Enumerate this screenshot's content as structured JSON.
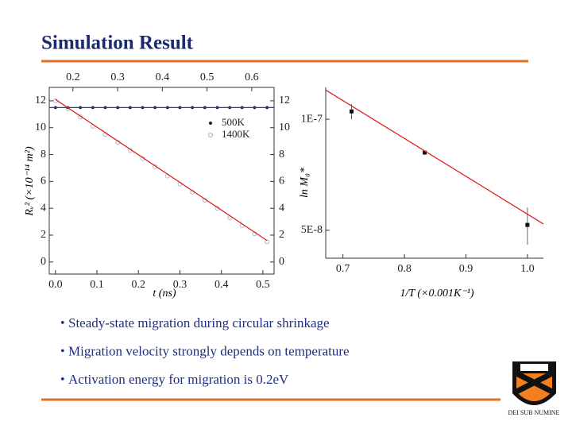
{
  "title": "Simulation Result",
  "bullets": [
    "Steady-state migration during circular shrinkage",
    "Migration velocity strongly depends on temperature",
    "Activation energy for migration is 0.2eV"
  ],
  "chart_data": [
    {
      "type": "line",
      "xlabel": "t (ns)",
      "ylabel": "Rᵥ² (×10⁻¹⁴ m²)",
      "xlim": [
        -0.015,
        0.527
      ],
      "xticks": [
        {
          "value": 0,
          "label": "0.0"
        },
        0.1,
        0.2,
        0.3,
        0.4,
        0.5
      ],
      "x2lim": [
        0.147,
        0.65
      ],
      "x2ticks": [
        0.2,
        0.3,
        0.4,
        0.5,
        0.6
      ],
      "ylim": [
        -0.9,
        13
      ],
      "yticks": [
        0,
        2,
        4,
        6,
        8,
        10,
        12
      ],
      "y2lim": [
        -0.9,
        13
      ],
      "y2ticks": [
        0,
        2,
        4,
        6,
        8,
        10,
        12
      ],
      "legend": "upper right",
      "series": [
        {
          "name": "500K",
          "color": "#1a1a40",
          "style": "markers",
          "x": [
            0,
            0.03,
            0.06,
            0.09,
            0.12,
            0.15,
            0.18,
            0.21,
            0.24,
            0.27,
            0.3,
            0.33,
            0.36,
            0.39,
            0.42,
            0.45,
            0.48,
            0.51
          ],
          "values": [
            11.5,
            11.5,
            11.5,
            11.5,
            11.5,
            11.5,
            11.5,
            11.5,
            11.5,
            11.5,
            11.5,
            11.5,
            11.5,
            11.5,
            11.5,
            11.5,
            11.5,
            11.5
          ]
        },
        {
          "name": "1400K",
          "color": "#aaaaaa",
          "style": "markers",
          "x": [
            0,
            0.03,
            0.06,
            0.09,
            0.12,
            0.15,
            0.18,
            0.21,
            0.24,
            0.27,
            0.3,
            0.33,
            0.36,
            0.39,
            0.42,
            0.45,
            0.48,
            0.51
          ],
          "values": [
            12.0,
            11.4,
            10.8,
            10.1,
            9.5,
            8.9,
            8.3,
            7.7,
            7.1,
            6.4,
            5.8,
            5.2,
            4.6,
            4.0,
            3.3,
            2.7,
            2.1,
            1.5
          ]
        },
        {
          "color": "#2a3aa0",
          "style": "line",
          "x": [
            -0.015,
            0.527
          ],
          "values": [
            11.5,
            11.5
          ]
        },
        {
          "color": "#e02020",
          "style": "line",
          "x": [
            0,
            0.51
          ],
          "values": [
            12.1,
            1.6
          ]
        }
      ]
    },
    {
      "type": "scatter",
      "xlabel": "1/T (×0.001K⁻¹)",
      "ylabel": "ln M₀*",
      "xlim": [
        0.672,
        1.026
      ],
      "xticks": [
        0.7,
        0.8,
        0.9,
        {
          "value": 1,
          "label": "1.0"
        }
      ],
      "ylim": [
        4.2e-08,
        1.22e-07
      ],
      "log_y": true,
      "yticks": [
        {
          "value": 1e-07,
          "label": "1E-7"
        },
        {
          "value": 5e-08,
          "label": "5E-8"
        }
      ],
      "series": [
        {
          "color": "#111111",
          "style": "errorbar",
          "x": [
            0.714,
            0.833,
            1.0
          ],
          "values": [
            1.05e-07,
            8.12e-08,
            5.17e-08
          ],
          "errors": [
            5e-09,
            1e-09,
            6e-09
          ]
        },
        {
          "color": "#e02020",
          "style": "line",
          "x": [
            0.672,
            1.026
          ],
          "values": [
            1.2e-07,
            5.2e-08
          ]
        }
      ]
    }
  ]
}
